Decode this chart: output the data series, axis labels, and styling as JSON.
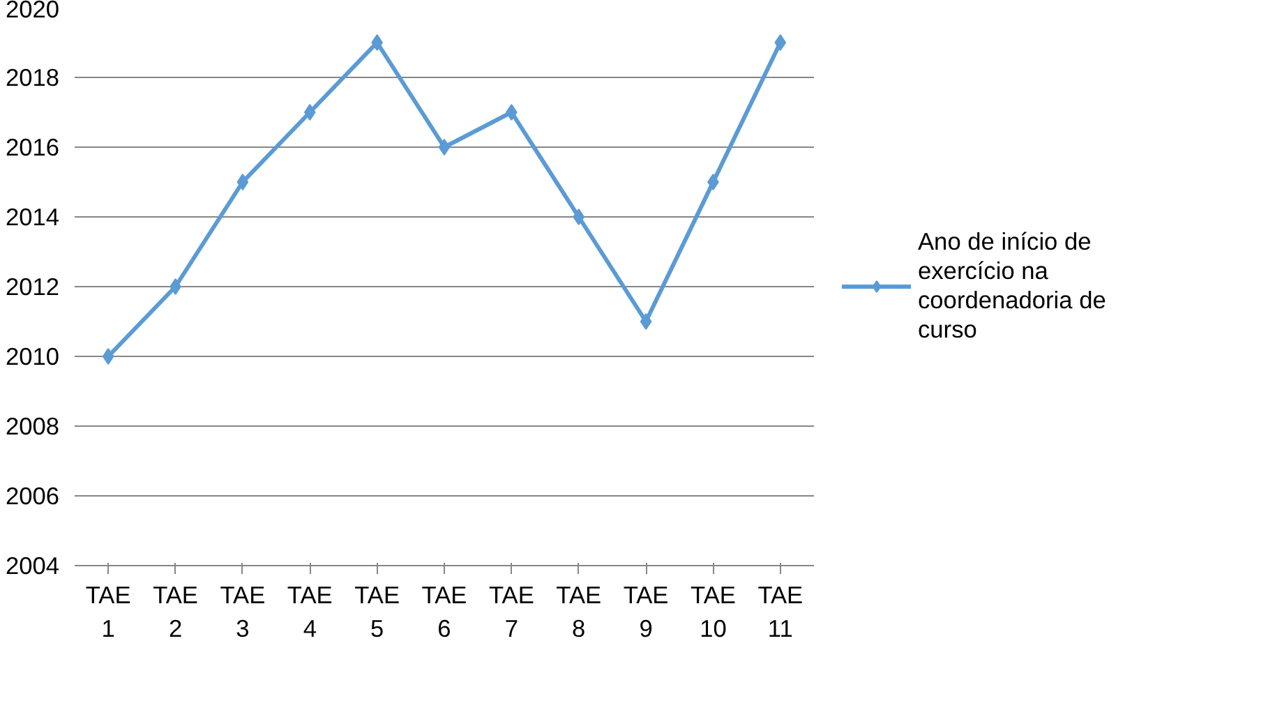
{
  "chart_data": {
    "type": "line",
    "categories": [
      "TAE 1",
      "TAE 2",
      "TAE 3",
      "TAE 4",
      "TAE 5",
      "TAE 6",
      "TAE 7",
      "TAE 8",
      "TAE 9",
      "TAE 10",
      "TAE 11"
    ],
    "series": [
      {
        "name": "Ano de início de exercício na coordenadoria de curso",
        "color": "#5b9bd5",
        "values": [
          2010,
          2012,
          2015,
          2017,
          2019,
          2016,
          2017,
          2014,
          2011,
          2015,
          2019
        ]
      }
    ],
    "ylim": [
      2004,
      2020
    ],
    "yticks": [
      2004,
      2006,
      2008,
      2010,
      2012,
      2014,
      2016,
      2018,
      2020
    ],
    "grid": "y",
    "legend": "right",
    "marker": "diamond",
    "line_style": "solid"
  }
}
